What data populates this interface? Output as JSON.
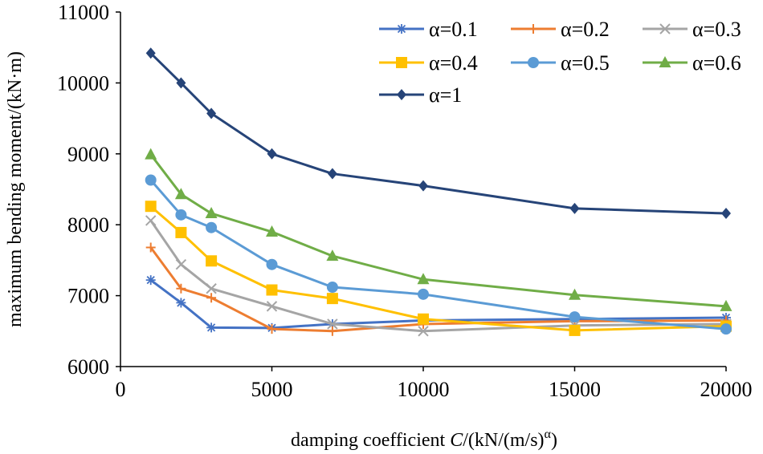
{
  "chart_data": {
    "type": "line",
    "title": "",
    "xlabel_parts": {
      "before": "damping coefficient ",
      "italic": "C",
      "after": "/(kN/(m/s)",
      "sup": "α",
      "close": ")"
    },
    "ylabel": "maximum bending moment/(kN·m)",
    "xlim": [
      0,
      20000
    ],
    "ylim": [
      6000,
      11000
    ],
    "x_ticks": [
      0,
      5000,
      10000,
      15000,
      20000
    ],
    "y_ticks": [
      6000,
      7000,
      8000,
      9000,
      10000,
      11000
    ],
    "x_tick_labels": [
      "0",
      "5000",
      "10000",
      "15000",
      "20000"
    ],
    "y_tick_labels": [
      "6000",
      "7000",
      "8000",
      "9000",
      "10000",
      "11000"
    ],
    "x": [
      1000,
      2000,
      3000,
      5000,
      7000,
      10000,
      15000,
      20000
    ],
    "legend_position": "top-right",
    "series": [
      {
        "name": "α=0.1",
        "color": "#4472C4",
        "marker": "star",
        "values": [
          7220,
          6900,
          6550,
          6545,
          6600,
          6650,
          6670,
          6690
        ]
      },
      {
        "name": "α=0.2",
        "color": "#ED7D31",
        "marker": "plus",
        "values": [
          7680,
          7100,
          6970,
          6530,
          6500,
          6600,
          6640,
          6650
        ]
      },
      {
        "name": "α=0.3",
        "color": "#A5A5A5",
        "marker": "x",
        "values": [
          8060,
          7440,
          7100,
          6850,
          6600,
          6500,
          6580,
          6600
        ]
      },
      {
        "name": "α=0.4",
        "color": "#FFC000",
        "marker": "square",
        "values": [
          8260,
          7890,
          7490,
          7080,
          6960,
          6670,
          6510,
          6570
        ]
      },
      {
        "name": "α=0.5",
        "color": "#5B9BD5",
        "marker": "circle",
        "values": [
          8630,
          8140,
          7960,
          7440,
          7120,
          7020,
          6700,
          6530
        ]
      },
      {
        "name": "α=0.6",
        "color": "#70AD47",
        "marker": "triangle",
        "values": [
          8990,
          8430,
          8160,
          7900,
          7560,
          7230,
          7010,
          6850
        ]
      },
      {
        "name": "α=1",
        "color": "#264478",
        "marker": "diamond",
        "values": [
          10420,
          10000,
          9570,
          9000,
          8720,
          8550,
          8230,
          8160
        ]
      }
    ]
  }
}
